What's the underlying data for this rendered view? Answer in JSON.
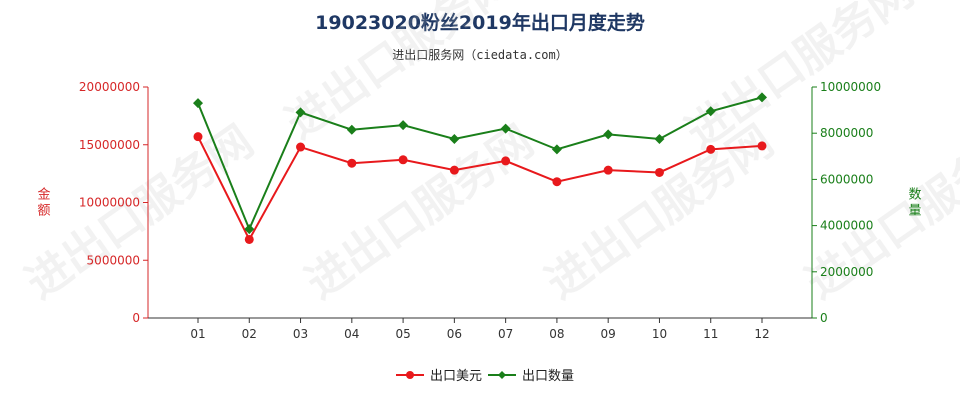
{
  "chart_data": {
    "type": "line",
    "title": "19023020粉丝2019年出口月度走势",
    "subtitle": "进出口服务网（ciedata.com）",
    "categories": [
      "01",
      "02",
      "03",
      "04",
      "05",
      "06",
      "07",
      "08",
      "09",
      "10",
      "11",
      "12"
    ],
    "y_left": {
      "label": "金额",
      "range": [
        0,
        20000000
      ],
      "ticks": [
        "0",
        "5000000",
        "10000000",
        "15000000",
        "20000000"
      ],
      "color": "#d62728"
    },
    "y_right": {
      "label": "数量",
      "range": [
        0,
        10000000
      ],
      "ticks": [
        "0",
        "2000000",
        "4000000",
        "6000000",
        "8000000",
        "10000000"
      ],
      "color": "#1a7f1a"
    },
    "series": [
      {
        "name": "出口美元",
        "axis": "left",
        "color": "#e8191c",
        "marker": "circle",
        "values": [
          15700000,
          6800000,
          14800000,
          13400000,
          13700000,
          12800000,
          13600000,
          11800000,
          12800000,
          12600000,
          14600000,
          14900000
        ]
      },
      {
        "name": "出口数量",
        "axis": "right",
        "color": "#1a7f1a",
        "marker": "diamond",
        "values": [
          9300000,
          3850000,
          8900000,
          8150000,
          8350000,
          7750000,
          8200000,
          7300000,
          7950000,
          7750000,
          8950000,
          9550000
        ]
      }
    ],
    "legend_position": "bottom-center",
    "grid": false,
    "watermark": "进出口服务网"
  }
}
